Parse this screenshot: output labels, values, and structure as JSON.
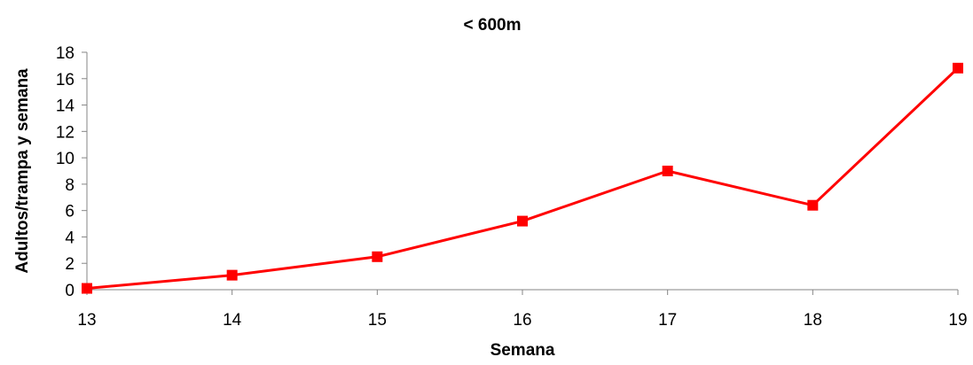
{
  "chart_data": {
    "type": "line",
    "title": "< 600m",
    "xlabel": "Semana",
    "ylabel": "Adultos/trampa y semana",
    "x": [
      13,
      14,
      15,
      16,
      17,
      18,
      19
    ],
    "x_ticks": [
      "13",
      "14",
      "15",
      "16",
      "17",
      "18",
      "19"
    ],
    "y_ticks": [
      "0",
      "2",
      "4",
      "6",
      "8",
      "10",
      "12",
      "14",
      "16",
      "18"
    ],
    "ylim": [
      0,
      18
    ],
    "series": [
      {
        "values": [
          0.1,
          1.1,
          2.5,
          5.2,
          9.0,
          6.4,
          16.8
        ]
      }
    ],
    "series_color": "#ff0000",
    "marker": "square",
    "grid": false,
    "legend": "none"
  }
}
